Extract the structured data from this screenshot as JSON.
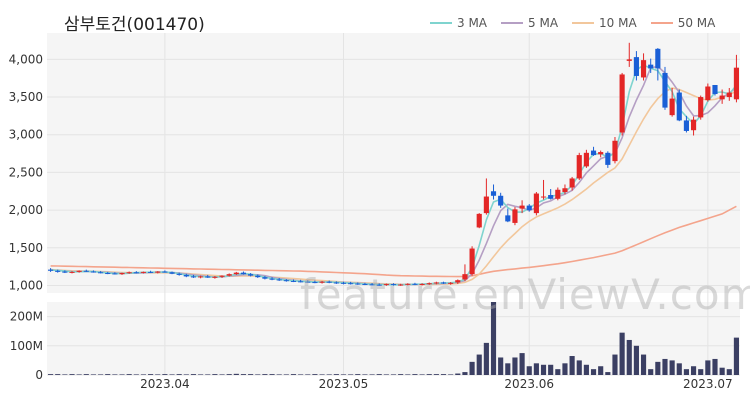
{
  "title": "삼부토건(001470)",
  "watermark": "feature.enViewV.com",
  "colors": {
    "up": "#e32626",
    "down": "#1a5fd6",
    "volume": "#3b3f63",
    "ma3": "#7fd4cf",
    "ma5": "#b59fc4",
    "ma10": "#f2c79c",
    "ma50": "#f4a48c"
  },
  "chart_data": {
    "type": "candlestick",
    "title": "삼부토건(001470)",
    "price_axis": {
      "ticks": [
        1000,
        1500,
        2000,
        2500,
        3000,
        3500,
        4000
      ],
      "tick_labels": [
        "1,000",
        "1,500",
        "2,000",
        "2,500",
        "3,000",
        "3,500",
        "4,000"
      ],
      "range": [
        900,
        4350
      ]
    },
    "volume_axis": {
      "ticks": [
        0,
        100,
        200
      ],
      "tick_labels": [
        "0",
        "100M",
        "200M"
      ],
      "unit": "M",
      "range": [
        0,
        250
      ]
    },
    "x_tick_labels": [
      {
        "label": "2023.04",
        "index": 16
      },
      {
        "label": "2023.05",
        "index": 41
      },
      {
        "label": "2023.06",
        "index": 67
      },
      {
        "label": "2023.07",
        "index": 92
      }
    ],
    "legend": [
      {
        "name": "3 MA",
        "color": "#7fd4cf"
      },
      {
        "name": "5 MA",
        "color": "#b59fc4"
      },
      {
        "name": "10 MA",
        "color": "#f2c79c"
      },
      {
        "name": "50 MA",
        "color": "#f4a48c"
      }
    ],
    "ohlc": [
      [
        1210,
        1230,
        1180,
        1195
      ],
      [
        1195,
        1210,
        1170,
        1180
      ],
      [
        1185,
        1200,
        1165,
        1170
      ],
      [
        1170,
        1190,
        1160,
        1180
      ],
      [
        1180,
        1200,
        1170,
        1195
      ],
      [
        1195,
        1210,
        1180,
        1185
      ],
      [
        1185,
        1200,
        1170,
        1175
      ],
      [
        1175,
        1190,
        1160,
        1165
      ],
      [
        1165,
        1180,
        1150,
        1160
      ],
      [
        1160,
        1175,
        1145,
        1150
      ],
      [
        1150,
        1170,
        1140,
        1165
      ],
      [
        1165,
        1185,
        1155,
        1175
      ],
      [
        1175,
        1190,
        1160,
        1170
      ],
      [
        1170,
        1185,
        1160,
        1180
      ],
      [
        1180,
        1195,
        1165,
        1170
      ],
      [
        1170,
        1190,
        1160,
        1185
      ],
      [
        1185,
        1200,
        1170,
        1175
      ],
      [
        1175,
        1185,
        1150,
        1155
      ],
      [
        1155,
        1170,
        1130,
        1140
      ],
      [
        1140,
        1155,
        1110,
        1120
      ],
      [
        1120,
        1140,
        1100,
        1110
      ],
      [
        1110,
        1130,
        1095,
        1120
      ],
      [
        1120,
        1140,
        1100,
        1105
      ],
      [
        1105,
        1125,
        1090,
        1115
      ],
      [
        1115,
        1135,
        1100,
        1130
      ],
      [
        1130,
        1160,
        1120,
        1150
      ],
      [
        1150,
        1180,
        1140,
        1170
      ],
      [
        1170,
        1185,
        1145,
        1150
      ],
      [
        1150,
        1165,
        1120,
        1130
      ],
      [
        1130,
        1145,
        1100,
        1110
      ],
      [
        1110,
        1125,
        1080,
        1090
      ],
      [
        1090,
        1110,
        1070,
        1080
      ],
      [
        1080,
        1100,
        1060,
        1070
      ],
      [
        1070,
        1085,
        1050,
        1060
      ],
      [
        1060,
        1080,
        1045,
        1055
      ],
      [
        1055,
        1075,
        1040,
        1050
      ],
      [
        1050,
        1070,
        1035,
        1045
      ],
      [
        1045,
        1065,
        1030,
        1040
      ],
      [
        1040,
        1060,
        1025,
        1050
      ],
      [
        1050,
        1065,
        1030,
        1040
      ],
      [
        1040,
        1055,
        1020,
        1035
      ],
      [
        1035,
        1050,
        1015,
        1030
      ],
      [
        1030,
        1048,
        1012,
        1025
      ],
      [
        1025,
        1040,
        1008,
        1020
      ],
      [
        1020,
        1035,
        1005,
        1015
      ],
      [
        1015,
        1032,
        1000,
        1010
      ],
      [
        1010,
        1028,
        996,
        1005
      ],
      [
        1005,
        1025,
        995,
        1018
      ],
      [
        1018,
        1030,
        998,
        1008
      ],
      [
        1008,
        1022,
        995,
        1012
      ],
      [
        1012,
        1030,
        1000,
        1022
      ],
      [
        1022,
        1035,
        1005,
        1015
      ],
      [
        1015,
        1030,
        1000,
        1020
      ],
      [
        1020,
        1040,
        1008,
        1030
      ],
      [
        1030,
        1050,
        1015,
        1040
      ],
      [
        1040,
        1050,
        1020,
        1030
      ],
      [
        1030,
        1045,
        1010,
        1035
      ],
      [
        1040,
        1080,
        1020,
        1070
      ],
      [
        1080,
        1280,
        1060,
        1150
      ],
      [
        1150,
        1520,
        1130,
        1490
      ],
      [
        1770,
        1960,
        1760,
        1950
      ],
      [
        1960,
        2420,
        1940,
        2180
      ],
      [
        2250,
        2340,
        2140,
        2190
      ],
      [
        2190,
        2230,
        2030,
        2060
      ],
      [
        1930,
        2020,
        1840,
        1850
      ],
      [
        1830,
        2040,
        1800,
        2010
      ],
      [
        2020,
        2130,
        1960,
        2060
      ],
      [
        2060,
        2080,
        1980,
        2000
      ],
      [
        1960,
        2240,
        1930,
        2220
      ],
      [
        2170,
        2400,
        2140,
        2180
      ],
      [
        2200,
        2280,
        2140,
        2150
      ],
      [
        2150,
        2300,
        2130,
        2270
      ],
      [
        2240,
        2340,
        2210,
        2290
      ],
      [
        2300,
        2440,
        2260,
        2420
      ],
      [
        2420,
        2760,
        2400,
        2730
      ],
      [
        2580,
        2800,
        2560,
        2760
      ],
      [
        2790,
        2840,
        2720,
        2730
      ],
      [
        2740,
        2790,
        2700,
        2770
      ],
      [
        2760,
        2780,
        2560,
        2600
      ],
      [
        2650,
        2970,
        2620,
        2920
      ],
      [
        3030,
        3820,
        2990,
        3800
      ],
      [
        3980,
        4220,
        3900,
        4000
      ],
      [
        4030,
        4110,
        3720,
        3780
      ],
      [
        3760,
        4080,
        3720,
        3990
      ],
      [
        3930,
        4010,
        3820,
        3880
      ],
      [
        4140,
        4150,
        3720,
        3880
      ],
      [
        3820,
        3900,
        3330,
        3360
      ],
      [
        3260,
        3620,
        3240,
        3480
      ],
      [
        3560,
        3600,
        3180,
        3190
      ],
      [
        3190,
        3250,
        3030,
        3050
      ],
      [
        3060,
        3240,
        2990,
        3200
      ],
      [
        3230,
        3520,
        3200,
        3500
      ],
      [
        3460,
        3680,
        3440,
        3640
      ],
      [
        3660,
        3660,
        3520,
        3540
      ],
      [
        3470,
        3600,
        3410,
        3520
      ],
      [
        3500,
        3620,
        3450,
        3560
      ],
      [
        3470,
        4060,
        3430,
        3890
      ]
    ],
    "ma3": [
      1205,
      1200,
      1190,
      1180,
      1182,
      1187,
      1185,
      1175,
      1167,
      1158,
      1158,
      1163,
      1170,
      1175,
      1175,
      1178,
      1177,
      1172,
      1157,
      1138,
      1123,
      1117,
      1112,
      1113,
      1117,
      1128,
      1150,
      1157,
      1150,
      1130,
      1110,
      1093,
      1080,
      1070,
      1062,
      1055,
      1050,
      1045,
      1045,
      1045,
      1042,
      1035,
      1030,
      1025,
      1020,
      1015,
      1010,
      1011,
      1010,
      1009,
      1014,
      1016,
      1019,
      1022,
      1030,
      1033,
      1035,
      1045,
      1085,
      1237,
      1530,
      1873,
      2107,
      2143,
      2033,
      1973,
      1973,
      2023,
      2093,
      2133,
      2183,
      2200,
      2237,
      2327,
      2480,
      2637,
      2740,
      2753,
      2700,
      2763,
      3107,
      3573,
      3860,
      3923,
      3883,
      3850,
      3707,
      3573,
      3343,
      3240,
      3147,
      3250,
      3447,
      3560,
      3567,
      3540,
      3657
    ],
    "ma5": [
      1205,
      1200,
      1193,
      1185,
      1184,
      1185,
      1183,
      1180,
      1174,
      1167,
      1161,
      1163,
      1164,
      1167,
      1172,
      1176,
      1176,
      1173,
      1165,
      1152,
      1140,
      1129,
      1119,
      1114,
      1114,
      1124,
      1134,
      1143,
      1146,
      1142,
      1130,
      1108,
      1092,
      1080,
      1069,
      1061,
      1054,
      1048,
      1046,
      1045,
      1042,
      1040,
      1036,
      1030,
      1025,
      1020,
      1015,
      1012,
      1011,
      1010,
      1012,
      1013,
      1015,
      1020,
      1025,
      1027,
      1032,
      1042,
      1065,
      1155,
      1337,
      1558,
      1792,
      1994,
      2076,
      2050,
      2032,
      1994,
      2031,
      2094,
      2122,
      2176,
      2212,
      2262,
      2368,
      2494,
      2586,
      2682,
      2718,
      2756,
      2960,
      3238,
      3460,
      3658,
      3888,
      3906,
      3820,
      3698,
      3560,
      3382,
      3250,
      3254,
      3292,
      3384,
      3491,
      3552,
      3631
    ],
    "ma10": [
      1210,
      1205,
      1200,
      1195,
      1192,
      1190,
      1188,
      1185,
      1181,
      1176,
      1172,
      1171,
      1170,
      1169,
      1168,
      1168,
      1168,
      1167,
      1165,
      1160,
      1152,
      1145,
      1138,
      1131,
      1124,
      1123,
      1124,
      1126,
      1126,
      1124,
      1119,
      1112,
      1105,
      1098,
      1091,
      1084,
      1077,
      1070,
      1064,
      1059,
      1052,
      1046,
      1042,
      1038,
      1034,
      1030,
      1025,
      1022,
      1019,
      1016,
      1014,
      1012,
      1012,
      1013,
      1015,
      1018,
      1021,
      1027,
      1040,
      1080,
      1150,
      1260,
      1380,
      1500,
      1600,
      1690,
      1780,
      1850,
      1910,
      1950,
      1990,
      2030,
      2080,
      2140,
      2210,
      2280,
      2360,
      2430,
      2500,
      2560,
      2680,
      2860,
      3040,
      3210,
      3360,
      3480,
      3570,
      3620,
      3600,
      3560,
      3520,
      3480,
      3460,
      3470,
      3500,
      3530,
      3580
    ],
    "ma50": [
      1260,
      1258,
      1256,
      1254,
      1252,
      1250,
      1248,
      1246,
      1244,
      1242,
      1240,
      1238,
      1236,
      1234,
      1232,
      1230,
      1228,
      1226,
      1224,
      1222,
      1220,
      1218,
      1216,
      1214,
      1212,
      1210,
      1208,
      1206,
      1204,
      1202,
      1200,
      1198,
      1196,
      1194,
      1192,
      1190,
      1187,
      1184,
      1180,
      1176,
      1172,
      1168,
      1164,
      1160,
      1156,
      1150,
      1144,
      1138,
      1134,
      1130,
      1128,
      1126,
      1124,
      1122,
      1121,
      1120,
      1119,
      1118,
      1120,
      1128,
      1148,
      1170,
      1188,
      1200,
      1210,
      1220,
      1230,
      1240,
      1250,
      1262,
      1275,
      1288,
      1302,
      1318,
      1335,
      1352,
      1370,
      1390,
      1410,
      1430,
      1460,
      1500,
      1540,
      1580,
      1620,
      1660,
      1700,
      1735,
      1770,
      1800,
      1830,
      1860,
      1890,
      1920,
      1950,
      2000,
      2050
    ],
    "volume": [
      3,
      3,
      2,
      3,
      2,
      3,
      2,
      2,
      3,
      2,
      2,
      3,
      2,
      2,
      3,
      2,
      3,
      2,
      3,
      2,
      3,
      2,
      2,
      3,
      2,
      3,
      4,
      3,
      3,
      2,
      3,
      3,
      2,
      2,
      3,
      2,
      2,
      3,
      2,
      2,
      3,
      2,
      2,
      3,
      2,
      2,
      3,
      2,
      2,
      3,
      2,
      3,
      2,
      3,
      3,
      3,
      2,
      5,
      10,
      45,
      70,
      110,
      250,
      60,
      40,
      60,
      75,
      30,
      40,
      35,
      35,
      20,
      40,
      65,
      50,
      35,
      20,
      30,
      10,
      70,
      145,
      120,
      100,
      70,
      20,
      45,
      55,
      50,
      40,
      20,
      30,
      20,
      50,
      55,
      25,
      20,
      128
    ]
  }
}
